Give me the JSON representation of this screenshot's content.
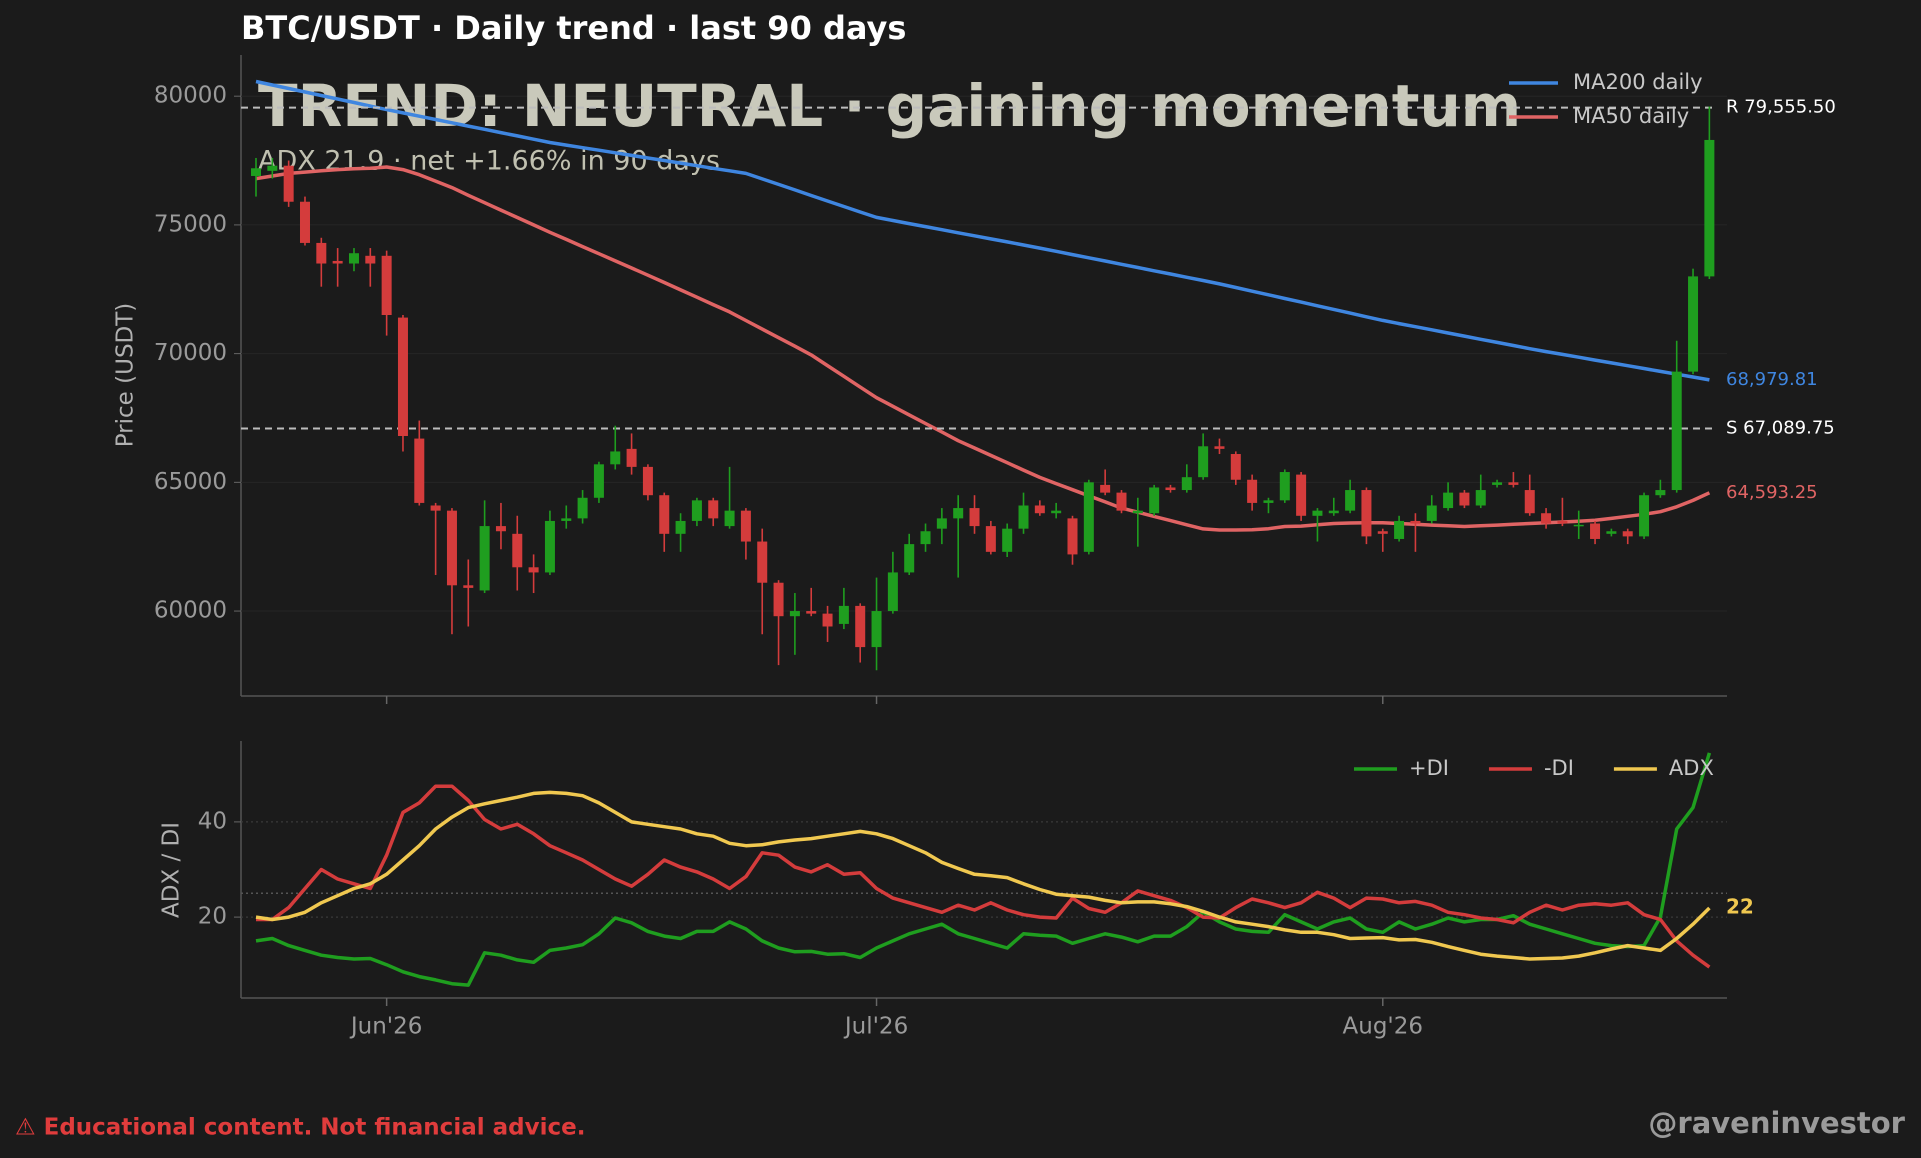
{
  "chart_data": [
    {
      "type": "candlestick",
      "title": "BTC/USDT · Daily trend · last 90 days",
      "annotation": {
        "headline": "TREND: NEUTRAL · gaining momentum",
        "detail": "ADX 21.9  ·  net +1.66% in 90 days"
      },
      "ylabel": "Price (USDT)",
      "ylim": [
        56700,
        81600
      ],
      "yticks": [
        60000,
        65000,
        70000,
        75000,
        80000
      ],
      "grid": true,
      "legend": "upper right",
      "up_color": "#1f9e1f",
      "down_color": "#d43c3c",
      "open": [
        76900,
        77100,
        77300,
        75900,
        74300,
        73600,
        73500,
        73800,
        73800,
        71400,
        66700,
        64100,
        63900,
        61000,
        60800,
        63300,
        63000,
        61700,
        61500,
        63500,
        63600,
        64400,
        65700,
        66300,
        65600,
        64500,
        63000,
        63500,
        64300,
        63300,
        63900,
        62700,
        61100,
        59800,
        60000,
        59900,
        59500,
        60200,
        58600,
        60000,
        61500,
        62600,
        63200,
        63600,
        64000,
        63300,
        62300,
        63200,
        64100,
        63800,
        63600,
        62300,
        64900,
        64600,
        63800,
        63800,
        64800,
        64700,
        65200,
        66400,
        66100,
        65100,
        64200,
        64300,
        65300,
        63700,
        63800,
        63900,
        64700,
        63100,
        62800,
        63500,
        63500,
        64000,
        64600,
        64100,
        64900,
        65000,
        64700,
        63800,
        63500,
        63300,
        63400,
        63000,
        63100,
        62900,
        64500,
        64700,
        69300,
        73000
      ],
      "high": [
        77600,
        77600,
        77500,
        76100,
        74500,
        74100,
        74100,
        74100,
        74000,
        71500,
        67400,
        64200,
        64000,
        62000,
        64300,
        64200,
        63700,
        62200,
        63900,
        64100,
        64700,
        65800,
        67200,
        66900,
        65700,
        64600,
        63800,
        64400,
        64400,
        65600,
        64000,
        63200,
        61200,
        60700,
        60900,
        60200,
        60900,
        60300,
        61300,
        62300,
        63000,
        63400,
        64000,
        64500,
        64500,
        63500,
        63400,
        64600,
        64300,
        64200,
        63700,
        65100,
        65500,
        64700,
        64400,
        64900,
        64900,
        65700,
        66900,
        66700,
        66200,
        65300,
        64400,
        65500,
        65400,
        64000,
        64400,
        65100,
        64800,
        63200,
        63700,
        63800,
        64500,
        65000,
        64700,
        65300,
        65100,
        65400,
        65300,
        64000,
        64400,
        63900,
        63500,
        63200,
        63200,
        64600,
        65100,
        70500,
        73300,
        79600
      ],
      "low": [
        76100,
        76800,
        75700,
        74200,
        72600,
        72600,
        73200,
        72600,
        70700,
        66200,
        64100,
        61400,
        59100,
        59400,
        60700,
        62400,
        60800,
        60700,
        61400,
        63200,
        63400,
        64200,
        65500,
        65300,
        64300,
        62300,
        62300,
        63300,
        63300,
        63200,
        62000,
        59100,
        57900,
        58300,
        59800,
        58800,
        59300,
        58000,
        57700,
        59900,
        61400,
        62300,
        62600,
        61300,
        63000,
        62200,
        62100,
        63000,
        63700,
        63600,
        61800,
        62200,
        64500,
        63800,
        62500,
        63700,
        64600,
        64600,
        65100,
        66100,
        64900,
        63900,
        63800,
        64200,
        63500,
        62700,
        63700,
        63800,
        62600,
        62300,
        62700,
        62300,
        63400,
        63900,
        64000,
        64000,
        64800,
        64800,
        63700,
        63200,
        63300,
        62800,
        62600,
        62900,
        62600,
        62800,
        64400,
        64600,
        69200,
        72900
      ],
      "close": [
        77200,
        77300,
        75900,
        74300,
        73500,
        73500,
        73900,
        73500,
        71500,
        66800,
        64200,
        63900,
        61000,
        60900,
        63300,
        63100,
        61700,
        61500,
        63500,
        63600,
        64400,
        65700,
        66200,
        65600,
        64500,
        63000,
        63500,
        64300,
        63600,
        63900,
        62700,
        61100,
        59800,
        60000,
        59900,
        59400,
        60200,
        58600,
        60000,
        61500,
        62600,
        63100,
        63600,
        64000,
        63300,
        62300,
        63200,
        64100,
        63800,
        63900,
        62200,
        65000,
        64600,
        63900,
        63900,
        64800,
        64700,
        65200,
        66400,
        66300,
        65100,
        64200,
        64300,
        65400,
        63700,
        63900,
        63900,
        64700,
        62900,
        63000,
        63500,
        63400,
        64100,
        64600,
        64100,
        64700,
        65000,
        64900,
        63800,
        63400,
        63400,
        63350,
        62800,
        63100,
        62900,
        64500,
        64700,
        69300,
        73000,
        78300
      ],
      "series": [
        {
          "name": "MA200 daily",
          "color": "#3f86e0",
          "end_label": "68,979.81",
          "values": [
            80570,
            80434,
            80298,
            80161,
            80025,
            79889,
            79753,
            79616,
            79480,
            79352,
            79224,
            79096,
            78968,
            78840,
            78712,
            78584,
            78456,
            78328,
            78200,
            78100,
            78000,
            77900,
            77800,
            77700,
            77600,
            77500,
            77400,
            77300,
            77200,
            77100,
            77000,
            76786,
            76572,
            76358,
            76144,
            75930,
            75716,
            75502,
            75290,
            75171,
            75052,
            74933,
            74814,
            74695,
            74576,
            74457,
            74338,
            74219,
            74100,
            73974,
            73848,
            73722,
            73596,
            73470,
            73344,
            73218,
            73092,
            72966,
            72840,
            72710,
            72568,
            72426,
            72284,
            72142,
            72000,
            71858,
            71716,
            71574,
            71432,
            71290,
            71168,
            71046,
            70924,
            70802,
            70680,
            70558,
            70436,
            70314,
            70190,
            70080,
            69970,
            69860,
            69750,
            69640,
            69530,
            69420,
            69310,
            69200,
            69090,
            68979.81
          ]
        },
        {
          "name": "MA50 daily",
          "color": "#e06464",
          "end_label": "64,593.25",
          "values": [
            76800,
            76900,
            77000,
            77050,
            77100,
            77150,
            77180,
            77200,
            77250,
            77150,
            76950,
            76700,
            76450,
            76150,
            75863,
            75576,
            75289,
            75002,
            74714,
            74436,
            74158,
            73880,
            73602,
            73324,
            73048,
            72762,
            72476,
            72190,
            71904,
            71619,
            71286,
            70953,
            70620,
            70287,
            69952,
            69535,
            69118,
            68701,
            68286,
            67953,
            67620,
            67287,
            66954,
            66619,
            66333,
            66047,
            65761,
            65475,
            65190,
            64952,
            64714,
            64476,
            64238,
            64000,
            63838,
            63676,
            63514,
            63352,
            63190,
            63150,
            63150,
            63160,
            63200,
            63286,
            63300,
            63350,
            63400,
            63420,
            63430,
            63430,
            63400,
            63370,
            63340,
            63310,
            63286,
            63310,
            63340,
            63370,
            63400,
            63430,
            63460,
            63490,
            63524,
            63600,
            63680,
            63760,
            63860,
            64050,
            64300,
            64593.25
          ]
        }
      ],
      "levels": [
        {
          "label": "R 79,555.50",
          "value": 79555.5
        },
        {
          "label": "S 67,089.75",
          "value": 67089.75
        }
      ]
    },
    {
      "type": "line",
      "ylabel": "ADX / DI",
      "categories": [
        null,
        null,
        null,
        null,
        null,
        null,
        null,
        null,
        "Jun'26",
        null,
        null,
        null,
        null,
        null,
        null,
        null,
        null,
        null,
        null,
        null,
        null,
        null,
        null,
        null,
        null,
        null,
        null,
        null,
        null,
        null,
        null,
        null,
        null,
        null,
        null,
        null,
        null,
        null,
        "Jul'26",
        null,
        null,
        null,
        null,
        null,
        null,
        null,
        null,
        null,
        null,
        null,
        null,
        null,
        null,
        null,
        null,
        null,
        null,
        null,
        null,
        null,
        null,
        null,
        null,
        null,
        null,
        null,
        null,
        null,
        null,
        "Aug'26",
        null,
        null,
        null,
        null,
        null,
        null,
        null,
        null,
        null,
        null,
        null,
        null,
        null,
        null,
        null,
        null,
        null,
        null,
        null,
        null
      ],
      "ylim": [
        3,
        57
      ],
      "yticks": [
        20,
        40
      ],
      "threshold": 25,
      "grid": true,
      "legend": "upper right",
      "series": [
        {
          "name": "+DI",
          "color": "#1f9e1f",
          "values": [
            15,
            15.5,
            14,
            13,
            12,
            11.5,
            11.2,
            11.3,
            10,
            8.5,
            7.5,
            6.8,
            6,
            5.7,
            12.5,
            12,
            11,
            10.5,
            13,
            13.5,
            14.2,
            16.5,
            19.8,
            18.8,
            17,
            16,
            15.5,
            17,
            17,
            19,
            17.5,
            15,
            13.5,
            12.7,
            12.8,
            12.2,
            12.3,
            11.5,
            13.5,
            15,
            16.5,
            17.5,
            18.5,
            16.5,
            15.5,
            14.5,
            13.5,
            16.5,
            16.2,
            16,
            14.5,
            15.5,
            16.5,
            15.8,
            14.8,
            16,
            16,
            18,
            21,
            19,
            17.5,
            17,
            16.8,
            20.5,
            19,
            17.5,
            19,
            19.8,
            17.5,
            16.8,
            19,
            17.5,
            18.5,
            19.8,
            19,
            19.5,
            19.5,
            20.3,
            18.5,
            17.5,
            16.5,
            15.5,
            14.5,
            14,
            13.8,
            14,
            20,
            38.5,
            43,
            54.5
          ]
        },
        {
          "name": "-DI",
          "color": "#d43c3c",
          "values": [
            19.5,
            19.5,
            22,
            26,
            30,
            28,
            27,
            26,
            33,
            42,
            44,
            47.5,
            47.5,
            44.5,
            40.5,
            38.5,
            39.5,
            37.5,
            35,
            33.5,
            32,
            30,
            28,
            26.5,
            29,
            32,
            30.5,
            29.5,
            28,
            26,
            28.5,
            33.5,
            33,
            30.5,
            29.5,
            31,
            29,
            29.3,
            26,
            24,
            23,
            22,
            21,
            22.5,
            21.5,
            23,
            21.5,
            20.5,
            20,
            19.8,
            24,
            21.8,
            21,
            23,
            25.5,
            24.5,
            23.5,
            22,
            20,
            19.8,
            22,
            23.8,
            23,
            22,
            23,
            25.2,
            24,
            22,
            24,
            23.8,
            23,
            23.3,
            22.5,
            21,
            20.5,
            19.8,
            19.5,
            18.8,
            21,
            22.5,
            21.5,
            22.5,
            22.8,
            22.5,
            23,
            20.5,
            19.5,
            15,
            12,
            9.5
          ]
        },
        {
          "name": "ADX",
          "color": "#f0c850",
          "end_label": "22",
          "values": [
            20,
            19.5,
            20,
            21,
            23,
            24.5,
            26,
            27,
            29,
            32,
            35,
            38.5,
            41,
            43,
            43.8,
            44.5,
            45.2,
            46,
            46.2,
            46,
            45.5,
            44,
            42,
            40,
            39.5,
            39,
            38.5,
            37.5,
            37,
            35.5,
            35,
            35.2,
            35.8,
            36.2,
            36.5,
            37,
            37.5,
            38,
            37.5,
            36.5,
            35,
            33.5,
            31.5,
            30.2,
            29,
            28.7,
            28.3,
            27,
            25.8,
            24.8,
            24.5,
            24.2,
            23.5,
            23,
            23.2,
            23.2,
            22.8,
            22.2,
            21.2,
            20,
            19,
            18.5,
            18,
            17.3,
            16.8,
            16.8,
            16.3,
            15.5,
            15.6,
            15.7,
            15.2,
            15.3,
            14.7,
            13.8,
            13,
            12.2,
            11.8,
            11.5,
            11.2,
            11.3,
            11.4,
            11.8,
            12.5,
            13.3,
            14,
            13.5,
            13,
            15.5,
            18.5,
            21.9
          ]
        }
      ]
    }
  ],
  "footer": {
    "disclaimer": "⚠ Educational content. Not financial advice.",
    "handle": "@raveninvestor"
  }
}
